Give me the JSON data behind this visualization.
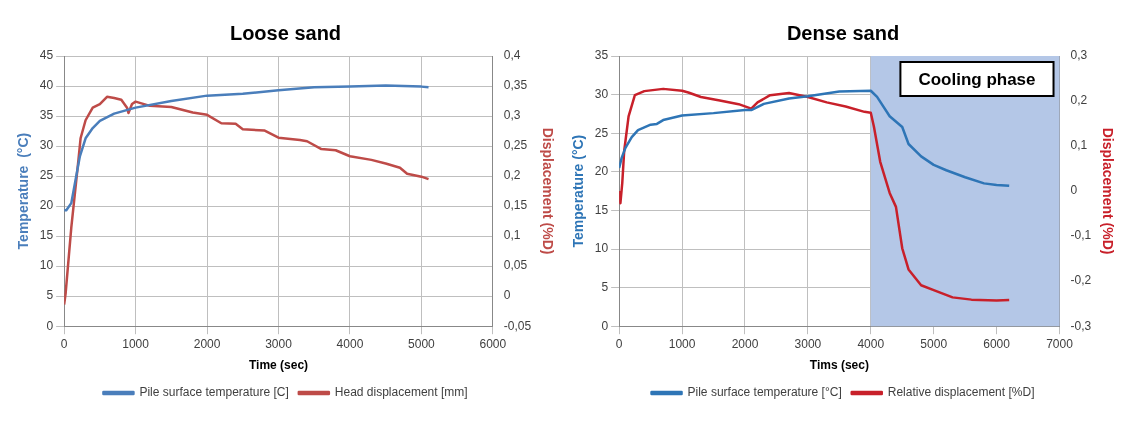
{
  "chart_data": [
    {
      "type": "line",
      "title": "Loose sand",
      "xlabel": "Time (sec)",
      "ylabel": "Temperature  (°C)",
      "y2label": "Displacement (%D)",
      "xlim": [
        0,
        6000
      ],
      "xticks": [
        0,
        1000,
        2000,
        3000,
        4000,
        5000,
        6000
      ],
      "ylim": [
        0,
        45
      ],
      "yticks": [
        0,
        5,
        10,
        15,
        20,
        25,
        30,
        35,
        40,
        45
      ],
      "y2lim": [
        -0.05,
        0.4
      ],
      "y2ticks": [
        {
          "value": -0.05,
          "label": "-0,05"
        },
        0,
        {
          "value": 0.05,
          "label": "0,05"
        },
        {
          "value": 0.1,
          "label": "0,1"
        },
        {
          "value": 0.15,
          "label": "0,15"
        },
        {
          "value": 0.2,
          "label": "0,2"
        },
        {
          "value": 0.25,
          "label": "0,25"
        },
        {
          "value": 0.3,
          "label": "0,3"
        },
        {
          "value": 0.35,
          "label": "0,35"
        },
        {
          "value": 0.4,
          "label": "0,4"
        }
      ],
      "grid": true,
      "legend": "bottom",
      "marker": "none",
      "line_style": "solid",
      "series": [
        {
          "name": "Pile surface temperature [C]",
          "color": "#4a7ebb",
          "x": [
            0,
            30,
            100,
            220,
            300,
            400,
            500,
            700,
            1000,
            1500,
            2000,
            2500,
            3000,
            3500,
            4000,
            4500,
            5000,
            5100
          ],
          "values": [
            19.3,
            19.3,
            20.5,
            28.3,
            31.3,
            33,
            34.2,
            35.4,
            36.4,
            37.5,
            38.4,
            38.7,
            39.3,
            39.8,
            39.9,
            40.1,
            39.9,
            39.8
          ]
        },
        {
          "name": "Head displacement [mm]",
          "color": "#be4b48",
          "axis": "y2",
          "x": [
            0,
            20,
            100,
            200,
            230,
            300,
            400,
            500,
            600,
            700,
            800,
            880,
            900,
            950,
            1000,
            1200,
            1500,
            1800,
            2000,
            2200,
            2400,
            2500,
            2800,
            3000,
            3300,
            3400,
            3600,
            3800,
            4000,
            4300,
            4500,
            4700,
            4800,
            5000,
            5100
          ],
          "values": [
            -0.014,
            0.004,
            0.114,
            0.227,
            0.263,
            0.293,
            0.314,
            0.32,
            0.332,
            0.33,
            0.327,
            0.314,
            0.305,
            0.32,
            0.324,
            0.317,
            0.315,
            0.306,
            0.302,
            0.288,
            0.287,
            0.278,
            0.276,
            0.264,
            0.26,
            0.258,
            0.245,
            0.243,
            0.233,
            0.227,
            0.221,
            0.214,
            0.204,
            0.199,
            0.195
          ]
        }
      ]
    },
    {
      "type": "line",
      "title": "Dense sand",
      "xlabel": "Tims (sec)",
      "ylabel": "Temperature (°C)",
      "y2label": "Displacement (%D)",
      "xlim": [
        0,
        7000
      ],
      "xticks": [
        0,
        1000,
        2000,
        3000,
        4000,
        5000,
        6000,
        7000
      ],
      "ylim": [
        0,
        35
      ],
      "yticks": [
        0,
        5,
        10,
        15,
        20,
        25,
        30,
        35
      ],
      "y2lim": [
        -0.3,
        0.3
      ],
      "y2ticks": [
        {
          "value": -0.3,
          "label": "-0,3"
        },
        {
          "value": -0.2,
          "label": "-0,2"
        },
        {
          "value": -0.1,
          "label": "-0,1"
        },
        0,
        {
          "value": 0.1,
          "label": "0,1"
        },
        {
          "value": 0.2,
          "label": "0,2"
        },
        {
          "value": 0.3,
          "label": "0,3"
        }
      ],
      "grid": true,
      "legend": "bottom",
      "marker": "none",
      "line_style": "solid",
      "bands": [
        {
          "axis": "x",
          "from": 4000,
          "to": 7000,
          "label": "Cooling phase",
          "color": "#b4c7e7"
        }
      ],
      "series": [
        {
          "name": "Pile surface temperature [°C]",
          "color": "#2e75b6",
          "x": [
            0,
            40,
            100,
            200,
            300,
            500,
            600,
            700,
            1000,
            1500,
            2000,
            2100,
            2300,
            2700,
            3000,
            3500,
            4000,
            4100,
            4300,
            4500,
            4600,
            4800,
            5000,
            5200,
            5500,
            5800,
            6000,
            6200
          ],
          "values": [
            20.5,
            21.8,
            23.1,
            24.5,
            25.4,
            26.1,
            26.2,
            26.7,
            27.3,
            27.6,
            28,
            28,
            28.8,
            29.5,
            29.8,
            30.4,
            30.5,
            29.7,
            27.2,
            25.8,
            23.6,
            22,
            20.9,
            20.2,
            19.3,
            18.5,
            18.3,
            18.2
          ]
        },
        {
          "name": "Relative displacement [%D]",
          "color": "#c8202a",
          "axis": "y2",
          "x": [
            0,
            20,
            50,
            80,
            150,
            250,
            400,
            700,
            1000,
            1100,
            1300,
            1600,
            1900,
            2100,
            2200,
            2400,
            2700,
            3000,
            3300,
            3600,
            3900,
            4000,
            4050,
            4150,
            4300,
            4400,
            4500,
            4600,
            4800,
            5000,
            5300,
            5600,
            6000,
            6200
          ],
          "values": [
            0.0,
            -0.027,
            0.019,
            0.089,
            0.166,
            0.213,
            0.222,
            0.227,
            0.223,
            0.219,
            0.209,
            0.201,
            0.193,
            0.183,
            0.197,
            0.213,
            0.218,
            0.209,
            0.197,
            0.188,
            0.176,
            0.174,
            0.143,
            0.065,
            -0.004,
            -0.035,
            -0.127,
            -0.174,
            -0.209,
            -0.22,
            -0.236,
            -0.241,
            -0.243,
            -0.242
          ]
        }
      ]
    }
  ]
}
